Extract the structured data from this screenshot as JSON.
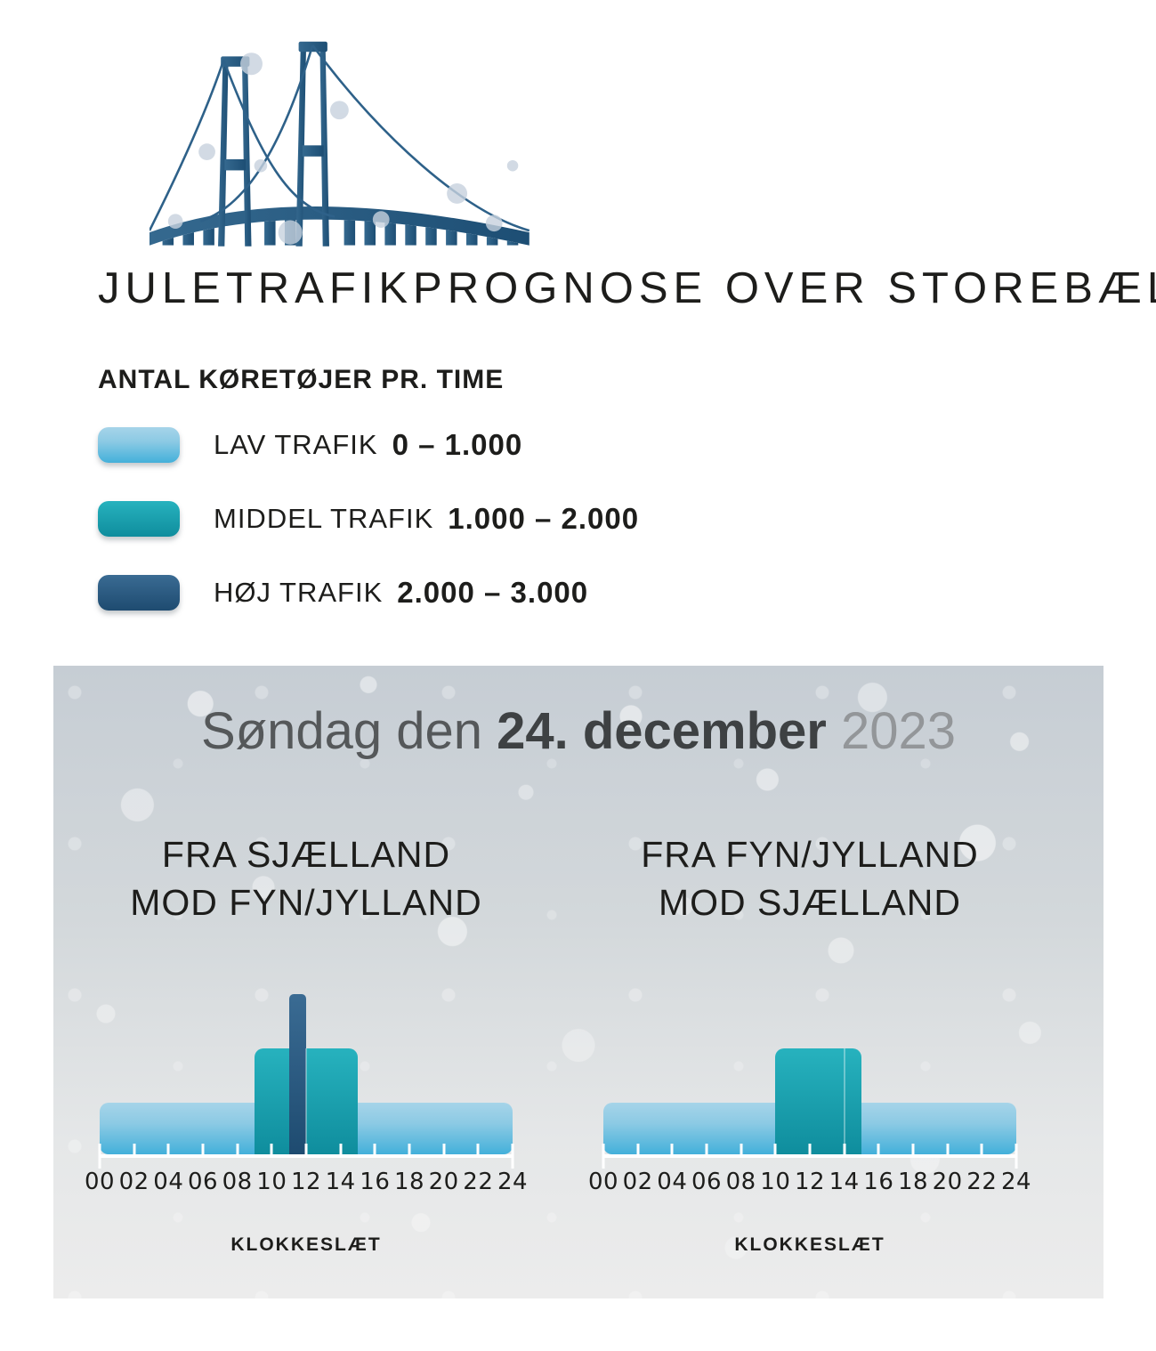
{
  "title": "JULETRAFIKPROGNOSE OVER STOREBÆLT",
  "legend": {
    "heading": "ANTAL KØRETØJER PR. TIME",
    "items": [
      {
        "label": "LAV TRAFIK",
        "range": "0 – 1.000",
        "level": "lav",
        "color": "#43b0da"
      },
      {
        "label": "MIDDEL TRAFIK",
        "range": "1.000 – 2.000",
        "level": "middel",
        "color": "#0f8d9d"
      },
      {
        "label": "HØJ TRAFIK",
        "range": "2.000 – 3.000",
        "level": "hoej",
        "color": "#1e4b70"
      }
    ]
  },
  "panel": {
    "date_prefix": "Søndag den",
    "date_bold": "24. december",
    "date_year": "2023"
  },
  "chart_data": [
    {
      "type": "bar",
      "title": [
        "FRA SJÆLLAND",
        "MOD FYN/JYLLAND"
      ],
      "xlabel": "KLOKKESLÆT",
      "x_ticks": [
        "00",
        "02",
        "04",
        "06",
        "08",
        "10",
        "12",
        "14",
        "16",
        "18",
        "20",
        "22",
        "24"
      ],
      "x_range_hours": [
        0,
        24
      ],
      "levels": {
        "lav": [
          0,
          1000
        ],
        "middel": [
          1000,
          2000
        ],
        "hoej": [
          2000,
          3000
        ]
      },
      "segments": [
        {
          "level": "lav",
          "from": 0,
          "to": 24
        },
        {
          "level": "middel",
          "from": 9,
          "to": 12
        },
        {
          "level": "middel",
          "from": 12,
          "to": 15
        },
        {
          "level": "hoej",
          "from": 11,
          "to": 12
        }
      ]
    },
    {
      "type": "bar",
      "title": [
        "FRA FYN/JYLLAND",
        "MOD SJÆLLAND"
      ],
      "xlabel": "KLOKKESLÆT",
      "x_ticks": [
        "00",
        "02",
        "04",
        "06",
        "08",
        "10",
        "12",
        "14",
        "16",
        "18",
        "20",
        "22",
        "24"
      ],
      "x_range_hours": [
        0,
        24
      ],
      "levels": {
        "lav": [
          0,
          1000
        ],
        "middel": [
          1000,
          2000
        ],
        "hoej": [
          2000,
          3000
        ]
      },
      "segments": [
        {
          "level": "lav",
          "from": 0,
          "to": 24
        },
        {
          "level": "middel",
          "from": 10,
          "to": 14
        },
        {
          "level": "middel",
          "from": 14,
          "to": 15
        }
      ]
    }
  ]
}
